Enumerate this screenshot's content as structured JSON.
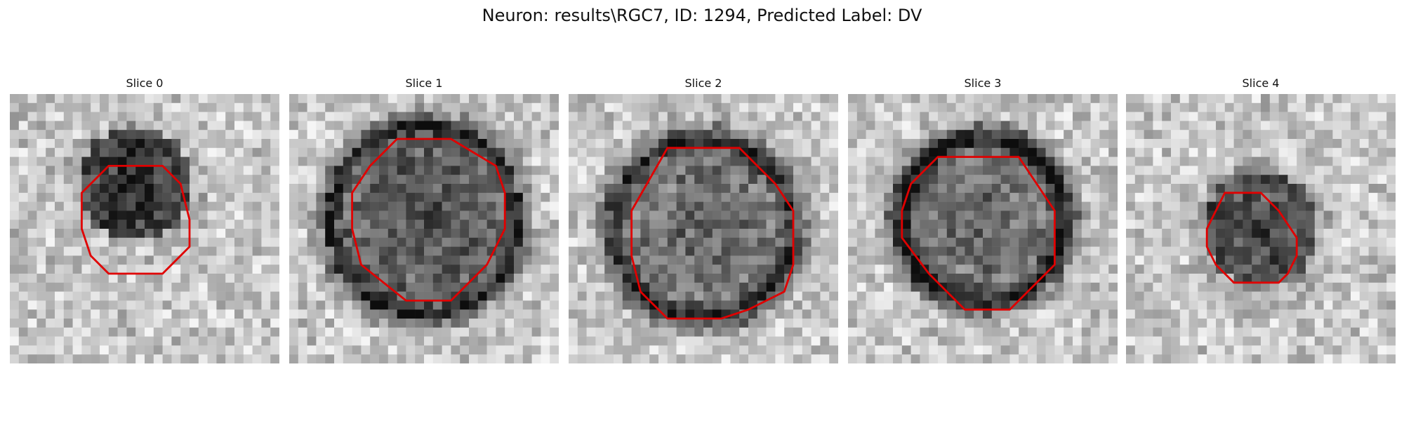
{
  "figure": {
    "title": "Neuron: results\\RGC7, ID: 1294, Predicted Label: DV"
  },
  "colors": {
    "background": "#ffffff",
    "contour": "#e00000",
    "dark_tone": "#0f0f0f",
    "light_tone": "#f2f2f2"
  },
  "grid": {
    "cells_per_side": 30
  },
  "panels": [
    {
      "title": "Slice 0",
      "image": {
        "blob_center": [
          14,
          10
        ],
        "blob_radius": 6.5,
        "blob_darkness": 0.68,
        "rim_darkness": 0.1,
        "seed": 11
      },
      "contour": [
        [
          11,
          8
        ],
        [
          17,
          8
        ],
        [
          19,
          10
        ],
        [
          20,
          14
        ],
        [
          20,
          17
        ],
        [
          17,
          20
        ],
        [
          11,
          20
        ],
        [
          9,
          18
        ],
        [
          8,
          15
        ],
        [
          8,
          11
        ]
      ]
    },
    {
      "title": "Slice 1",
      "image": {
        "blob_center": [
          15,
          14
        ],
        "blob_radius": 11,
        "blob_darkness": 0.5,
        "rim_darkness": 0.35,
        "seed": 23
      },
      "contour": [
        [
          12,
          5
        ],
        [
          18,
          5
        ],
        [
          23,
          8
        ],
        [
          24,
          11
        ],
        [
          24,
          15
        ],
        [
          22,
          19
        ],
        [
          18,
          23
        ],
        [
          13,
          23
        ],
        [
          8,
          19
        ],
        [
          7,
          15
        ],
        [
          7,
          11
        ],
        [
          9,
          8
        ]
      ]
    },
    {
      "title": "Slice 2",
      "image": {
        "blob_center": [
          15,
          15
        ],
        "blob_radius": 10.5,
        "blob_darkness": 0.4,
        "rim_darkness": 0.45,
        "seed": 37
      },
      "contour": [
        [
          11,
          6
        ],
        [
          19,
          6
        ],
        [
          23,
          10
        ],
        [
          25,
          13
        ],
        [
          25,
          19
        ],
        [
          24,
          22
        ],
        [
          20,
          24
        ],
        [
          17,
          25
        ],
        [
          11,
          25
        ],
        [
          8,
          22
        ],
        [
          7,
          18
        ],
        [
          7,
          13
        ]
      ]
    },
    {
      "title": "Slice 3",
      "image": {
        "blob_center": [
          15,
          14
        ],
        "blob_radius": 9.5,
        "blob_darkness": 0.4,
        "rim_darkness": 0.55,
        "seed": 53
      },
      "contour": [
        [
          10,
          7
        ],
        [
          19,
          7
        ],
        [
          21,
          10
        ],
        [
          23,
          13
        ],
        [
          23,
          19
        ],
        [
          21,
          21
        ],
        [
          18,
          24
        ],
        [
          13,
          24
        ],
        [
          9,
          20
        ],
        [
          6,
          16
        ],
        [
          6,
          13
        ],
        [
          7,
          10
        ]
      ]
    },
    {
      "title": "Slice 4",
      "image": {
        "blob_center": [
          15,
          15
        ],
        "blob_radius": 6.5,
        "blob_darkness": 0.55,
        "rim_darkness": 0.15,
        "seed": 71
      },
      "contour": [
        [
          11,
          11
        ],
        [
          15,
          11
        ],
        [
          17,
          13
        ],
        [
          19,
          16
        ],
        [
          19,
          18
        ],
        [
          18,
          20
        ],
        [
          17,
          21
        ],
        [
          12,
          21
        ],
        [
          10,
          19
        ],
        [
          9,
          17
        ],
        [
          9,
          15
        ]
      ]
    }
  ]
}
